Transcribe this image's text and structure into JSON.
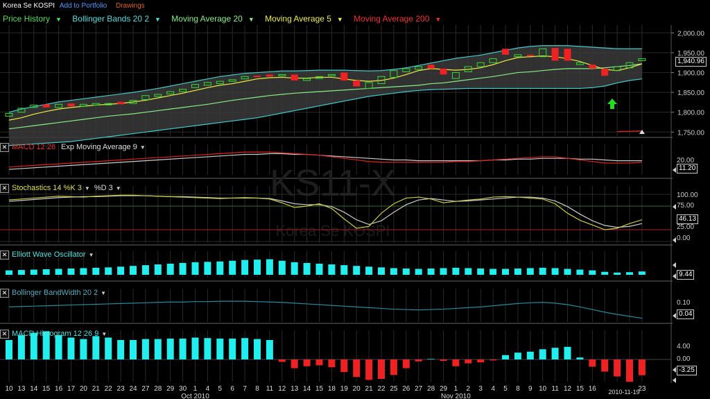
{
  "header": {
    "symbol": "Korea Se KOSPI",
    "add_portfolio": "Add to Portfolio",
    "drawings": "Drawings"
  },
  "legend": [
    {
      "label": "Price History",
      "color": "#55dd55"
    },
    {
      "label": "Bollinger Bands 20 2",
      "color": "#55dddd"
    },
    {
      "label": "Moving Average 20",
      "color": "#88ee88"
    },
    {
      "label": "Moving Average 5",
      "color": "#eeee55"
    },
    {
      "label": "Moving Average 200",
      "color": "#ee3333"
    }
  ],
  "watermark": {
    "title": "KS11-X",
    "subtitle": "Korea Se KOSPI"
  },
  "colors": {
    "up": "#33dd33",
    "down": "#ee2222",
    "cyan": "#22eeee",
    "grid": "#333333"
  },
  "panels": {
    "macd": {
      "labels": [
        {
          "text": "MACD 12 26",
          "color": "#ee3333"
        },
        {
          "text": "Exp Moving Average 9",
          "color": "#dddddd"
        }
      ],
      "yticks": [
        "20.00"
      ],
      "value": "11.20"
    },
    "stoch": {
      "labels": [
        {
          "text": "Stochastics 14 %K 3",
          "color": "#dddd55"
        },
        {
          "text": "%D 3",
          "color": "#dddddd"
        }
      ],
      "yticks": [
        "100.00",
        "75.00",
        "25.00",
        "0.00"
      ],
      "value": "46.13"
    },
    "ewo": {
      "labels": [
        {
          "text": "Elliott Wave Oscillator",
          "color": "#55dddd"
        }
      ],
      "yticks": [],
      "value": "9.44"
    },
    "bbw": {
      "labels": [
        {
          "text": "Bollinger BandWidth 20 2",
          "color": "#55aabb"
        }
      ],
      "yticks": [
        "0.10"
      ],
      "value": "0.04"
    },
    "hist": {
      "labels": [
        {
          "text": "MACD Histogram 12 26 9",
          "color": "#55dddd"
        }
      ],
      "yticks": [
        "4.00",
        "0.00"
      ],
      "value": "-3.25"
    }
  },
  "chart_data": {
    "type": "candlestick",
    "price_yticks": [
      "2,000.00",
      "1,950.00",
      "1,900.00",
      "1,850.00",
      "1,800.00",
      "1,750.00"
    ],
    "ylim": [
      1740,
      2020
    ],
    "last_price": "1,940.96",
    "x_labels": [
      "10",
      "13",
      "14",
      "15",
      "16",
      "17",
      "20",
      "21",
      "22",
      "23",
      "24",
      "27",
      "28",
      "29",
      "30",
      "1",
      "4",
      "5",
      "6",
      "7",
      "8",
      "11",
      "12",
      "13",
      "14",
      "15",
      "18",
      "19",
      "20",
      "21",
      "22",
      "25",
      "26",
      "27",
      "28",
      "29",
      "1",
      "2",
      "3",
      "4",
      "5",
      "8",
      "9",
      "10",
      "11",
      "12",
      "15",
      "16",
      "",
      "",
      "",
      "23"
    ],
    "month_labels": [
      {
        "text": "Oct 2010",
        "index": 15
      },
      {
        "text": "Nov 2010",
        "index": 36
      }
    ],
    "date_label": "2010-11-19",
    "close": [
      1797,
      1810,
      1818,
      1812,
      1820,
      1815,
      1820,
      1822,
      1822,
      1820,
      1830,
      1842,
      1845,
      1852,
      1858,
      1870,
      1875,
      1878,
      1882,
      1890,
      1890,
      1890,
      1895,
      1880,
      1885,
      1890,
      1895,
      1880,
      1865,
      1875,
      1890,
      1905,
      1910,
      1915,
      1910,
      1895,
      1900,
      1915,
      1925,
      1935,
      1945,
      1945,
      1942,
      1960,
      1930,
      1930,
      1925,
      1910,
      1892,
      1915,
      1925,
      1935
    ],
    "open": [
      1790,
      1800,
      1812,
      1820,
      1812,
      1822,
      1815,
      1818,
      1820,
      1826,
      1822,
      1832,
      1840,
      1846,
      1852,
      1862,
      1868,
      1872,
      1878,
      1884,
      1892,
      1895,
      1892,
      1895,
      1880,
      1885,
      1892,
      1900,
      1880,
      1860,
      1872,
      1888,
      1902,
      1908,
      1920,
      1910,
      1885,
      1902,
      1915,
      1925,
      1960,
      1940,
      1945,
      1940,
      1962,
      1960,
      1920,
      1920,
      1910,
      1905,
      1912,
      1930
    ],
    "ma5": [
      1780,
      1786,
      1795,
      1802,
      1808,
      1812,
      1815,
      1818,
      1820,
      1822,
      1826,
      1830,
      1836,
      1842,
      1848,
      1855,
      1862,
      1868,
      1872,
      1878,
      1884,
      1887,
      1888,
      1886,
      1886,
      1888,
      1888,
      1884,
      1880,
      1878,
      1880,
      1886,
      1895,
      1905,
      1910,
      1908,
      1906,
      1908,
      1912,
      1920,
      1930,
      1938,
      1940,
      1942,
      1940,
      1935,
      1928,
      1918,
      1908,
      1905,
      1912,
      1922
    ],
    "ma20": [
      1758,
      1762,
      1766,
      1770,
      1774,
      1778,
      1782,
      1786,
      1790,
      1793,
      1796,
      1800,
      1804,
      1808,
      1812,
      1816,
      1820,
      1825,
      1830,
      1834,
      1838,
      1842,
      1845,
      1848,
      1850,
      1852,
      1854,
      1856,
      1858,
      1860,
      1862,
      1864,
      1866,
      1868,
      1872,
      1874,
      1878,
      1882,
      1886,
      1890,
      1895,
      1900,
      1902,
      1905,
      1908,
      1910,
      1910,
      1910,
      1912,
      1915,
      1918,
      1922
    ],
    "bb_upper": [
      1800,
      1808,
      1814,
      1820,
      1826,
      1830,
      1834,
      1838,
      1842,
      1846,
      1850,
      1855,
      1860,
      1866,
      1872,
      1878,
      1884,
      1890,
      1894,
      1898,
      1900,
      1902,
      1904,
      1904,
      1905,
      1906,
      1906,
      1906,
      1905,
      1904,
      1905,
      1908,
      1912,
      1918,
      1924,
      1930,
      1936,
      1940,
      1944,
      1950,
      1956,
      1962,
      1966,
      1968,
      1968,
      1968,
      1966,
      1964,
      1962,
      1960,
      1960,
      1960
    ],
    "bb_lower": [
      1716,
      1718,
      1720,
      1722,
      1724,
      1726,
      1730,
      1734,
      1738,
      1742,
      1746,
      1750,
      1754,
      1758,
      1762,
      1766,
      1770,
      1774,
      1778,
      1782,
      1786,
      1792,
      1798,
      1804,
      1810,
      1816,
      1822,
      1828,
      1834,
      1840,
      1844,
      1848,
      1852,
      1855,
      1857,
      1858,
      1859,
      1860,
      1860,
      1860,
      1860,
      1860,
      1860,
      1860,
      1860,
      1860,
      1860,
      1862,
      1866,
      1874,
      1880,
      1884
    ],
    "ma200": [
      1751,
      1752,
      1753
    ],
    "macd": [
      5,
      6,
      7,
      8,
      9,
      10,
      11,
      12,
      13,
      14,
      15,
      16,
      17,
      18,
      19,
      20,
      21,
      22,
      23,
      24,
      24,
      24,
      23,
      22,
      21,
      20,
      18,
      16,
      14,
      12,
      11,
      11,
      11,
      11,
      11,
      11,
      12,
      12,
      13,
      14,
      15,
      16,
      17,
      18,
      18,
      16,
      14,
      12,
      10,
      10,
      10,
      11
    ],
    "macd_signal": [
      2,
      3,
      4,
      5,
      6,
      7,
      8,
      9,
      10,
      11,
      12,
      13,
      14,
      15,
      16,
      17,
      18,
      19,
      20,
      21,
      21,
      22,
      22,
      21,
      21,
      20,
      19,
      18,
      17,
      16,
      15,
      14,
      14,
      13,
      13,
      13,
      13,
      13,
      13,
      14,
      14,
      15,
      15,
      16,
      16,
      16,
      15,
      15,
      14,
      13,
      13,
      13
    ],
    "stoch_k": [
      88,
      90,
      92,
      94,
      96,
      95,
      94,
      96,
      97,
      98,
      98,
      97,
      96,
      95,
      94,
      93,
      92,
      91,
      92,
      93,
      92,
      90,
      82,
      72,
      75,
      80,
      70,
      48,
      28,
      32,
      60,
      80,
      92,
      94,
      90,
      82,
      85,
      88,
      90,
      94,
      95,
      94,
      92,
      90,
      80,
      60,
      45,
      35,
      25,
      28,
      38,
      46
    ],
    "stoch_d": [
      85,
      87,
      89,
      91,
      93,
      94,
      95,
      95,
      96,
      97,
      97,
      97,
      96,
      95,
      95,
      94,
      93,
      92,
      92,
      92,
      92,
      91,
      86,
      80,
      78,
      78,
      74,
      62,
      46,
      36,
      44,
      62,
      78,
      88,
      91,
      88,
      85,
      86,
      88,
      90,
      92,
      94,
      94,
      92,
      86,
      74,
      58,
      44,
      34,
      30,
      32,
      38
    ],
    "ewo": [
      12,
      13,
      14,
      15,
      16,
      17,
      18,
      19,
      20,
      22,
      24,
      26,
      28,
      30,
      32,
      34,
      35,
      36,
      38,
      40,
      41,
      42,
      38,
      34,
      32,
      30,
      28,
      26,
      24,
      22,
      20,
      18,
      17,
      16,
      17,
      18,
      19,
      18,
      17,
      16,
      16,
      17,
      18,
      19,
      18,
      16,
      14,
      12,
      8,
      6,
      7,
      9
    ],
    "bbw": [
      0.07,
      0.071,
      0.072,
      0.073,
      0.074,
      0.075,
      0.076,
      0.077,
      0.078,
      0.079,
      0.08,
      0.081,
      0.082,
      0.083,
      0.083,
      0.084,
      0.084,
      0.085,
      0.085,
      0.085,
      0.084,
      0.083,
      0.082,
      0.08,
      0.078,
      0.076,
      0.074,
      0.072,
      0.07,
      0.068,
      0.066,
      0.064,
      0.063,
      0.062,
      0.063,
      0.064,
      0.066,
      0.068,
      0.07,
      0.073,
      0.076,
      0.079,
      0.081,
      0.082,
      0.08,
      0.076,
      0.07,
      0.063,
      0.056,
      0.05,
      0.045,
      0.04
    ],
    "hist": [
      4,
      5,
      5.5,
      5.8,
      5,
      4.5,
      4.2,
      4.8,
      4.5,
      4,
      4,
      4.2,
      4.2,
      4.3,
      4.3,
      4.5,
      4.4,
      4.3,
      4.3,
      4.4,
      4.2,
      4,
      -0.5,
      -1.8,
      -1.4,
      -1.2,
      -1.6,
      -2.6,
      -3.6,
      -4.2,
      -4,
      -3.2,
      -1.8,
      -0.4,
      0.1,
      -0.3,
      -1.4,
      -0.8,
      -0.6,
      -0.2,
      0.9,
      1.4,
      1.6,
      2.1,
      2.4,
      2.6,
      0.4,
      -1.5,
      -2.5,
      -3.5,
      -4.6,
      -3.25
    ]
  }
}
